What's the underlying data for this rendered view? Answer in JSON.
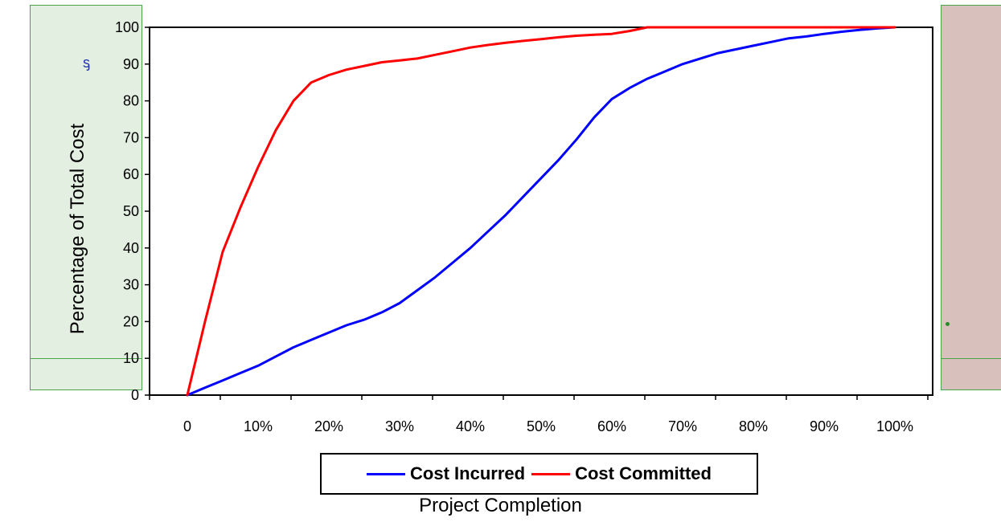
{
  "chart_data": {
    "type": "line",
    "xlabel": "Project Completion",
    "ylabel": "Percentage of Total Cost",
    "ylim": [
      0,
      100
    ],
    "yticks": [
      0,
      10,
      20,
      30,
      40,
      50,
      60,
      70,
      80,
      90,
      100
    ],
    "x_tick_labels": [
      "0",
      "10%",
      "20%",
      "30%",
      "40%",
      "50%",
      "60%",
      "70%",
      "80%",
      "90%",
      "100%"
    ],
    "x": [
      0,
      2.5,
      5,
      7.5,
      10,
      12.5,
      15,
      17.5,
      20,
      22.5,
      25,
      27.5,
      30,
      32.5,
      35,
      37.5,
      40,
      42.5,
      45,
      47.5,
      50,
      52.5,
      55,
      57.5,
      60,
      62.5,
      65,
      67.5,
      70,
      72.5,
      75,
      77.5,
      80,
      82.5,
      85,
      87.5,
      90,
      92.5,
      95,
      97.5,
      100
    ],
    "legend_position": "bottom",
    "grid": false,
    "series": [
      {
        "name": "Cost Incurred",
        "color": "#0000ff",
        "values": [
          0,
          2,
          4,
          6,
          8,
          10.5,
          13,
          15,
          17,
          19,
          20.5,
          22.5,
          25,
          28.5,
          32,
          36,
          40,
          44.5,
          49,
          54,
          59,
          64,
          69.5,
          75.5,
          80.5,
          83.5,
          86,
          88,
          90,
          91.5,
          93,
          94,
          95,
          96,
          97,
          97.5,
          98.2,
          98.8,
          99.3,
          99.7,
          100
        ]
      },
      {
        "name": "Cost Committed",
        "color": "#ff0000",
        "values": [
          0,
          20,
          39,
          51,
          62,
          72,
          80,
          85,
          87,
          88.5,
          89.5,
          90.5,
          91,
          91.5,
          92.5,
          93.5,
          94.5,
          95.2,
          95.8,
          96.3,
          96.8,
          97.3,
          97.7,
          98,
          98.2,
          99,
          100,
          100,
          100,
          100,
          100,
          100,
          100,
          100,
          100,
          100,
          100,
          100,
          100,
          100,
          100
        ]
      }
    ]
  }
}
